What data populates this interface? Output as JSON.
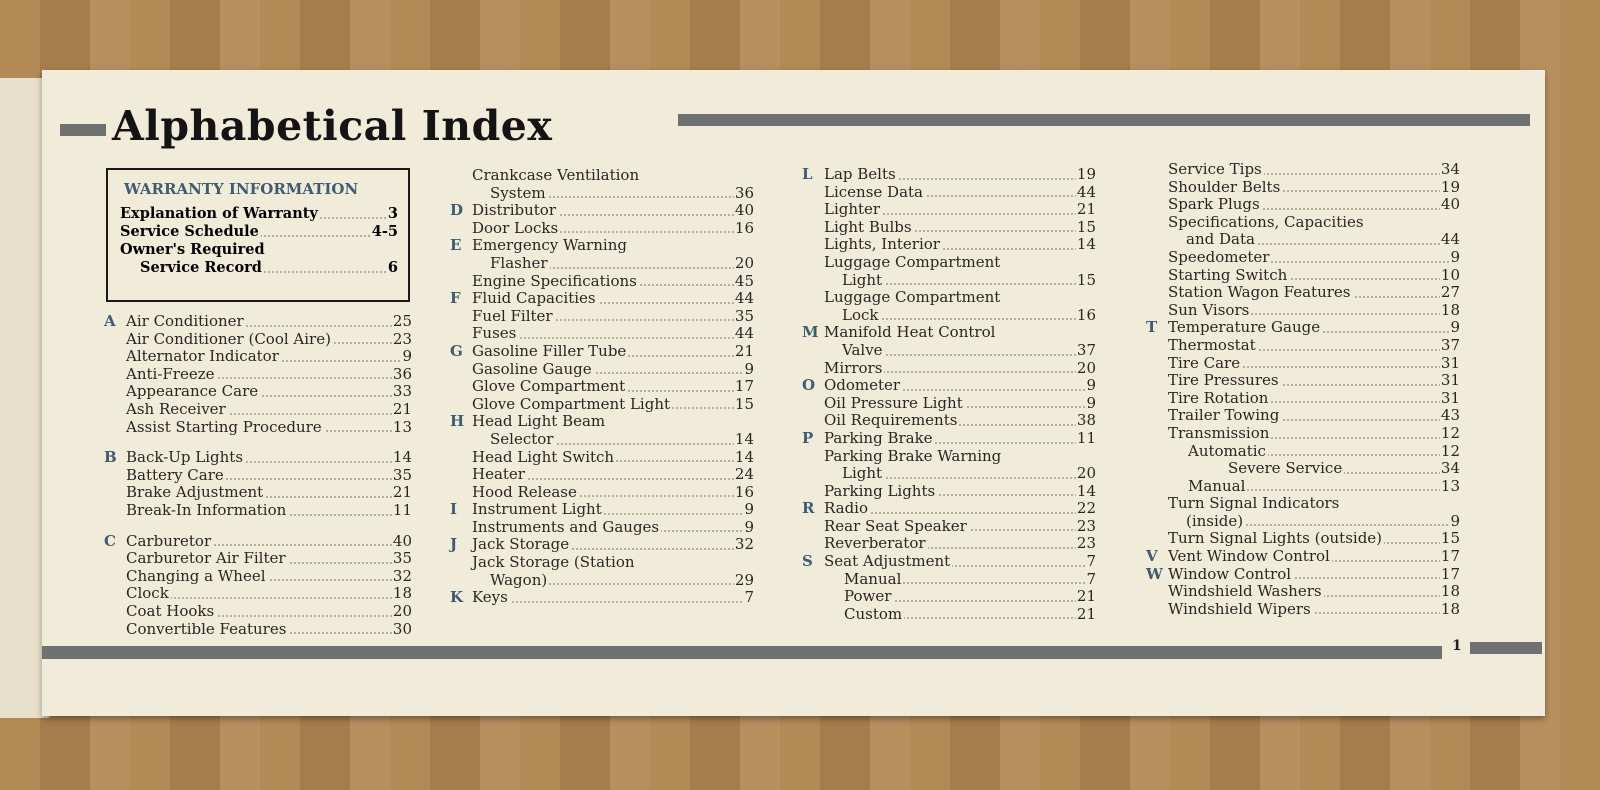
{
  "title": "Alphabetical Index",
  "page_number": "1",
  "warranty": {
    "heading": "WARRANTY INFORMATION",
    "items": [
      {
        "label": "Explanation of Warranty",
        "page": "3"
      },
      {
        "label": "Service Schedule",
        "page": "4-5"
      },
      {
        "label": "Owner's Required",
        "cont": "Service Record",
        "page": "6"
      }
    ]
  },
  "columns": [
    [
      {
        "letter": "A",
        "entries": [
          {
            "label": "Air Conditioner",
            "page": "25"
          },
          {
            "label": "Air Conditioner (Cool Aire)",
            "page": "23"
          },
          {
            "label": "Alternator Indicator",
            "page": "9"
          },
          {
            "label": "Anti-Freeze",
            "page": "36"
          },
          {
            "label": "Appearance Care",
            "page": "33"
          },
          {
            "label": "Ash Receiver",
            "page": "21"
          },
          {
            "label": "Assist Starting Procedure",
            "page": "13"
          }
        ]
      },
      {
        "letter": "B",
        "entries": [
          {
            "label": "Back-Up Lights",
            "page": "14"
          },
          {
            "label": "Battery Care",
            "page": "35"
          },
          {
            "label": "Brake Adjustment",
            "page": "21"
          },
          {
            "label": "Break-In Information",
            "page": "11"
          }
        ]
      },
      {
        "letter": "C",
        "entries": [
          {
            "label": "Carburetor",
            "page": "40"
          },
          {
            "label": "Carburetor Air Filter",
            "page": "35"
          },
          {
            "label": "Changing a Wheel",
            "page": "32"
          },
          {
            "label": "Clock",
            "page": "18"
          },
          {
            "label": "Coat Hooks",
            "page": "20"
          },
          {
            "label": "Convertible Features",
            "page": "30"
          }
        ]
      }
    ],
    [
      {
        "letter": "",
        "entries": [
          {
            "label": "Crankcase Ventilation",
            "cont": "System",
            "page": "36"
          }
        ]
      },
      {
        "letter": "D",
        "entries": [
          {
            "label": "Distributor",
            "page": "40"
          },
          {
            "label": "Door Locks",
            "page": "16"
          }
        ]
      },
      {
        "letter": "E",
        "entries": [
          {
            "label": "Emergency Warning",
            "cont": "Flasher",
            "page": "20"
          },
          {
            "label": "Engine Specifications",
            "page": "45"
          }
        ]
      },
      {
        "letter": "F",
        "entries": [
          {
            "label": "Fluid Capacities",
            "page": "44"
          },
          {
            "label": "Fuel Filter",
            "page": "35"
          },
          {
            "label": "Fuses",
            "page": "44"
          }
        ]
      },
      {
        "letter": "G",
        "entries": [
          {
            "label": "Gasoline Filler Tube",
            "page": "21"
          },
          {
            "label": "Gasoline Gauge",
            "page": "9"
          },
          {
            "label": "Glove Compartment",
            "page": "17"
          },
          {
            "label": "Glove Compartment Light",
            "page": "15"
          }
        ]
      },
      {
        "letter": "H",
        "entries": [
          {
            "label": "Head Light Beam",
            "cont": "Selector",
            "page": "14"
          },
          {
            "label": "Head Light Switch",
            "page": "14"
          },
          {
            "label": "Heater",
            "page": "24"
          },
          {
            "label": "Hood Release",
            "page": "16"
          }
        ]
      },
      {
        "letter": "I",
        "entries": [
          {
            "label": "Instrument Light",
            "page": "9"
          },
          {
            "label": "Instruments and Gauges",
            "page": "9"
          }
        ]
      },
      {
        "letter": "J",
        "entries": [
          {
            "label": "Jack Storage",
            "page": "32"
          },
          {
            "label": "Jack Storage (Station",
            "cont": "Wagon)",
            "page": "29"
          }
        ]
      },
      {
        "letter": "K",
        "entries": [
          {
            "label": "Keys",
            "page": "7"
          }
        ]
      }
    ],
    [
      {
        "letter": "L",
        "entries": [
          {
            "label": "Lap Belts",
            "page": "19"
          },
          {
            "label": "License Data",
            "page": "44"
          },
          {
            "label": "Lighter",
            "page": "21"
          },
          {
            "label": "Light Bulbs",
            "page": "15"
          },
          {
            "label": "Lights, Interior",
            "page": "14"
          },
          {
            "label": "Luggage Compartment",
            "cont": "Light",
            "page": "15"
          },
          {
            "label": "Luggage Compartment",
            "cont": "Lock",
            "page": "16"
          }
        ]
      },
      {
        "letter": "M",
        "entries": [
          {
            "label": "Manifold Heat Control",
            "cont": "Valve",
            "page": "37"
          },
          {
            "label": "Mirrors",
            "page": "20"
          }
        ]
      },
      {
        "letter": "O",
        "entries": [
          {
            "label": "Odometer",
            "page": "9"
          },
          {
            "label": "Oil Pressure Light",
            "page": "9"
          },
          {
            "label": "Oil Requirements",
            "page": "38"
          }
        ]
      },
      {
        "letter": "P",
        "entries": [
          {
            "label": "Parking Brake",
            "page": "11"
          },
          {
            "label": "Parking Brake Warning",
            "cont": "Light",
            "page": "20"
          },
          {
            "label": "Parking Lights",
            "page": "14"
          }
        ]
      },
      {
        "letter": "R",
        "entries": [
          {
            "label": "Radio",
            "page": "22"
          },
          {
            "label": "Rear Seat Speaker",
            "page": "23"
          },
          {
            "label": "Reverberator",
            "page": "23"
          }
        ]
      },
      {
        "letter": "S",
        "entries": [
          {
            "label": "Seat Adjustment",
            "page": "7"
          },
          {
            "label": "Manual",
            "page": "7",
            "level": 1
          },
          {
            "label": "Power",
            "page": "21",
            "level": 1
          },
          {
            "label": "Custom",
            "page": "21",
            "level": 1
          }
        ]
      }
    ],
    [
      {
        "letter": "",
        "entries": [
          {
            "label": "Service Tips",
            "page": "34"
          },
          {
            "label": "Shoulder Belts",
            "page": "19"
          },
          {
            "label": "Spark Plugs",
            "page": "40"
          },
          {
            "label": "Specifications, Capacities",
            "cont": "and Data",
            "page": "44"
          },
          {
            "label": "Speedometer",
            "page": "9"
          },
          {
            "label": "Starting Switch",
            "page": "10"
          },
          {
            "label": "Station Wagon Features",
            "page": "27"
          },
          {
            "label": "Sun Visors",
            "page": "18"
          }
        ]
      },
      {
        "letter": "T",
        "entries": [
          {
            "label": "Temperature Gauge",
            "page": "9"
          },
          {
            "label": "Thermostat",
            "page": "37"
          },
          {
            "label": "Tire Care",
            "page": "31"
          },
          {
            "label": "Tire Pressures",
            "page": "31"
          },
          {
            "label": "Tire Rotation",
            "page": "31"
          },
          {
            "label": "Trailer Towing",
            "page": "43"
          },
          {
            "label": "Transmission",
            "page": "12"
          },
          {
            "label": "Automatic",
            "page": "12",
            "level": 1
          },
          {
            "label": "Severe Service",
            "page": "34",
            "level": 2
          },
          {
            "label": "Manual",
            "page": "13",
            "level": 1
          },
          {
            "label": "Turn Signal Indicators",
            "cont": "(inside)",
            "page": "9"
          },
          {
            "label": "Turn Signal Lights (outside)",
            "page": "15"
          }
        ]
      },
      {
        "letter": "V",
        "entries": [
          {
            "label": "Vent Window Control",
            "page": "17"
          }
        ]
      },
      {
        "letter": "W",
        "entries": [
          {
            "label": "Window Control",
            "page": "17"
          },
          {
            "label": "Windshield Washers",
            "page": "18"
          },
          {
            "label": "Windshield Wipers",
            "page": "18"
          }
        ]
      }
    ]
  ],
  "colors": {
    "bar": "#6e7170",
    "letter": "#3e5c72",
    "paper": "#f1ebda"
  }
}
